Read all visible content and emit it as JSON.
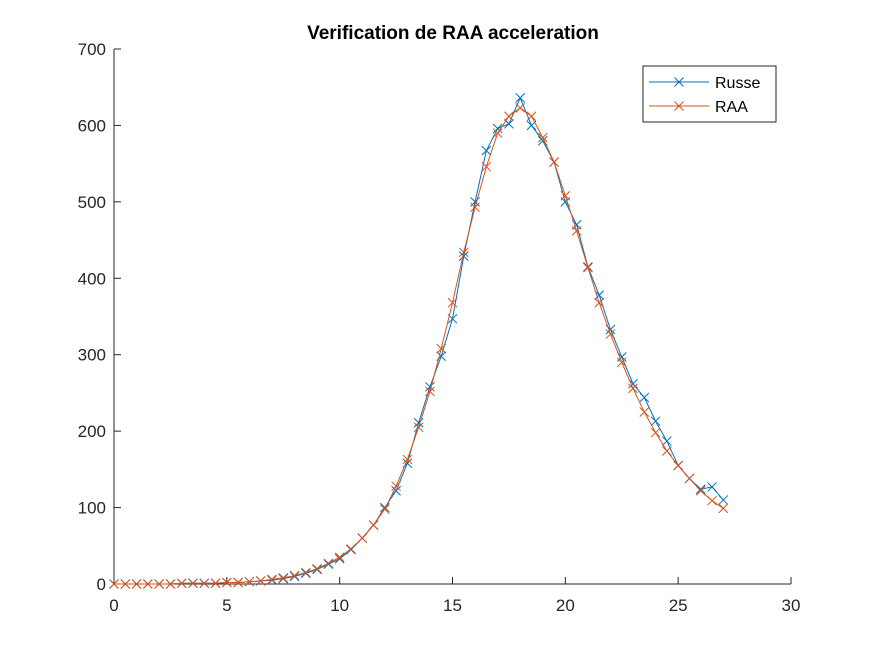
{
  "chart_data": {
    "type": "line",
    "title": "Verification de RAA acceleration",
    "xlabel": "",
    "ylabel": "",
    "xlim": [
      0,
      30
    ],
    "ylim": [
      0,
      700
    ],
    "xticks": [
      0,
      5,
      10,
      15,
      20,
      25,
      30
    ],
    "yticks": [
      0,
      100,
      200,
      300,
      400,
      500,
      600,
      700
    ],
    "grid": false,
    "legend_position": "top-right",
    "marker": "x",
    "series": [
      {
        "name": "Russe",
        "color": "#0072BD",
        "x": [
          0,
          0.5,
          1,
          1.5,
          2,
          2.5,
          3,
          3.5,
          4,
          4.5,
          5,
          5.5,
          6,
          6.5,
          7,
          7.5,
          8,
          8.5,
          9,
          9.5,
          10,
          10.5,
          11,
          11.5,
          12,
          12.5,
          13,
          13.5,
          14,
          14.5,
          15,
          15.5,
          16,
          16.5,
          17,
          17.5,
          18,
          18.5,
          19,
          19.5,
          20,
          20.5,
          21,
          21.5,
          22,
          22.5,
          23,
          23.5,
          24,
          24.5,
          25,
          25.5,
          26,
          26.5,
          27
        ],
        "y": [
          0,
          0,
          0,
          0,
          0,
          0,
          1,
          1,
          1,
          1,
          2,
          2,
          3,
          4,
          5,
          7,
          10,
          14,
          19,
          26,
          33,
          45,
          60,
          77,
          100,
          122,
          158,
          211,
          258,
          298,
          347,
          429,
          500,
          567,
          596,
          602,
          636,
          600,
          580,
          552,
          500,
          470,
          415,
          378,
          333,
          297,
          262,
          244,
          213,
          187,
          155,
          138,
          124,
          127,
          110
        ]
      },
      {
        "name": "RAA",
        "color": "#D95319",
        "x": [
          0,
          0.5,
          1,
          1.5,
          2,
          2.5,
          3,
          3.5,
          4,
          4.5,
          5,
          5.5,
          6,
          6.5,
          7,
          7.5,
          8,
          8.5,
          9,
          9.5,
          10,
          10.5,
          11,
          11.5,
          12,
          12.5,
          13,
          13.5,
          14,
          14.5,
          15,
          15.5,
          16,
          16.5,
          17,
          17.5,
          18,
          18.5,
          19,
          19.5,
          20,
          20.5,
          21,
          21.5,
          22,
          22.5,
          23,
          23.5,
          24,
          24.5,
          25,
          25.5,
          26,
          26.5,
          27
        ],
        "y": [
          0,
          0,
          0,
          0,
          0,
          0,
          1,
          1,
          1,
          1,
          2,
          2,
          3,
          4,
          6,
          8,
          11,
          15,
          20,
          27,
          35,
          46,
          60,
          77,
          98,
          128,
          163,
          205,
          252,
          308,
          368,
          434,
          493,
          546,
          590,
          612,
          623,
          612,
          584,
          552,
          508,
          462,
          414,
          368,
          327,
          290,
          256,
          225,
          198,
          174,
          155,
          138,
          122,
          109,
          99
        ]
      }
    ]
  }
}
